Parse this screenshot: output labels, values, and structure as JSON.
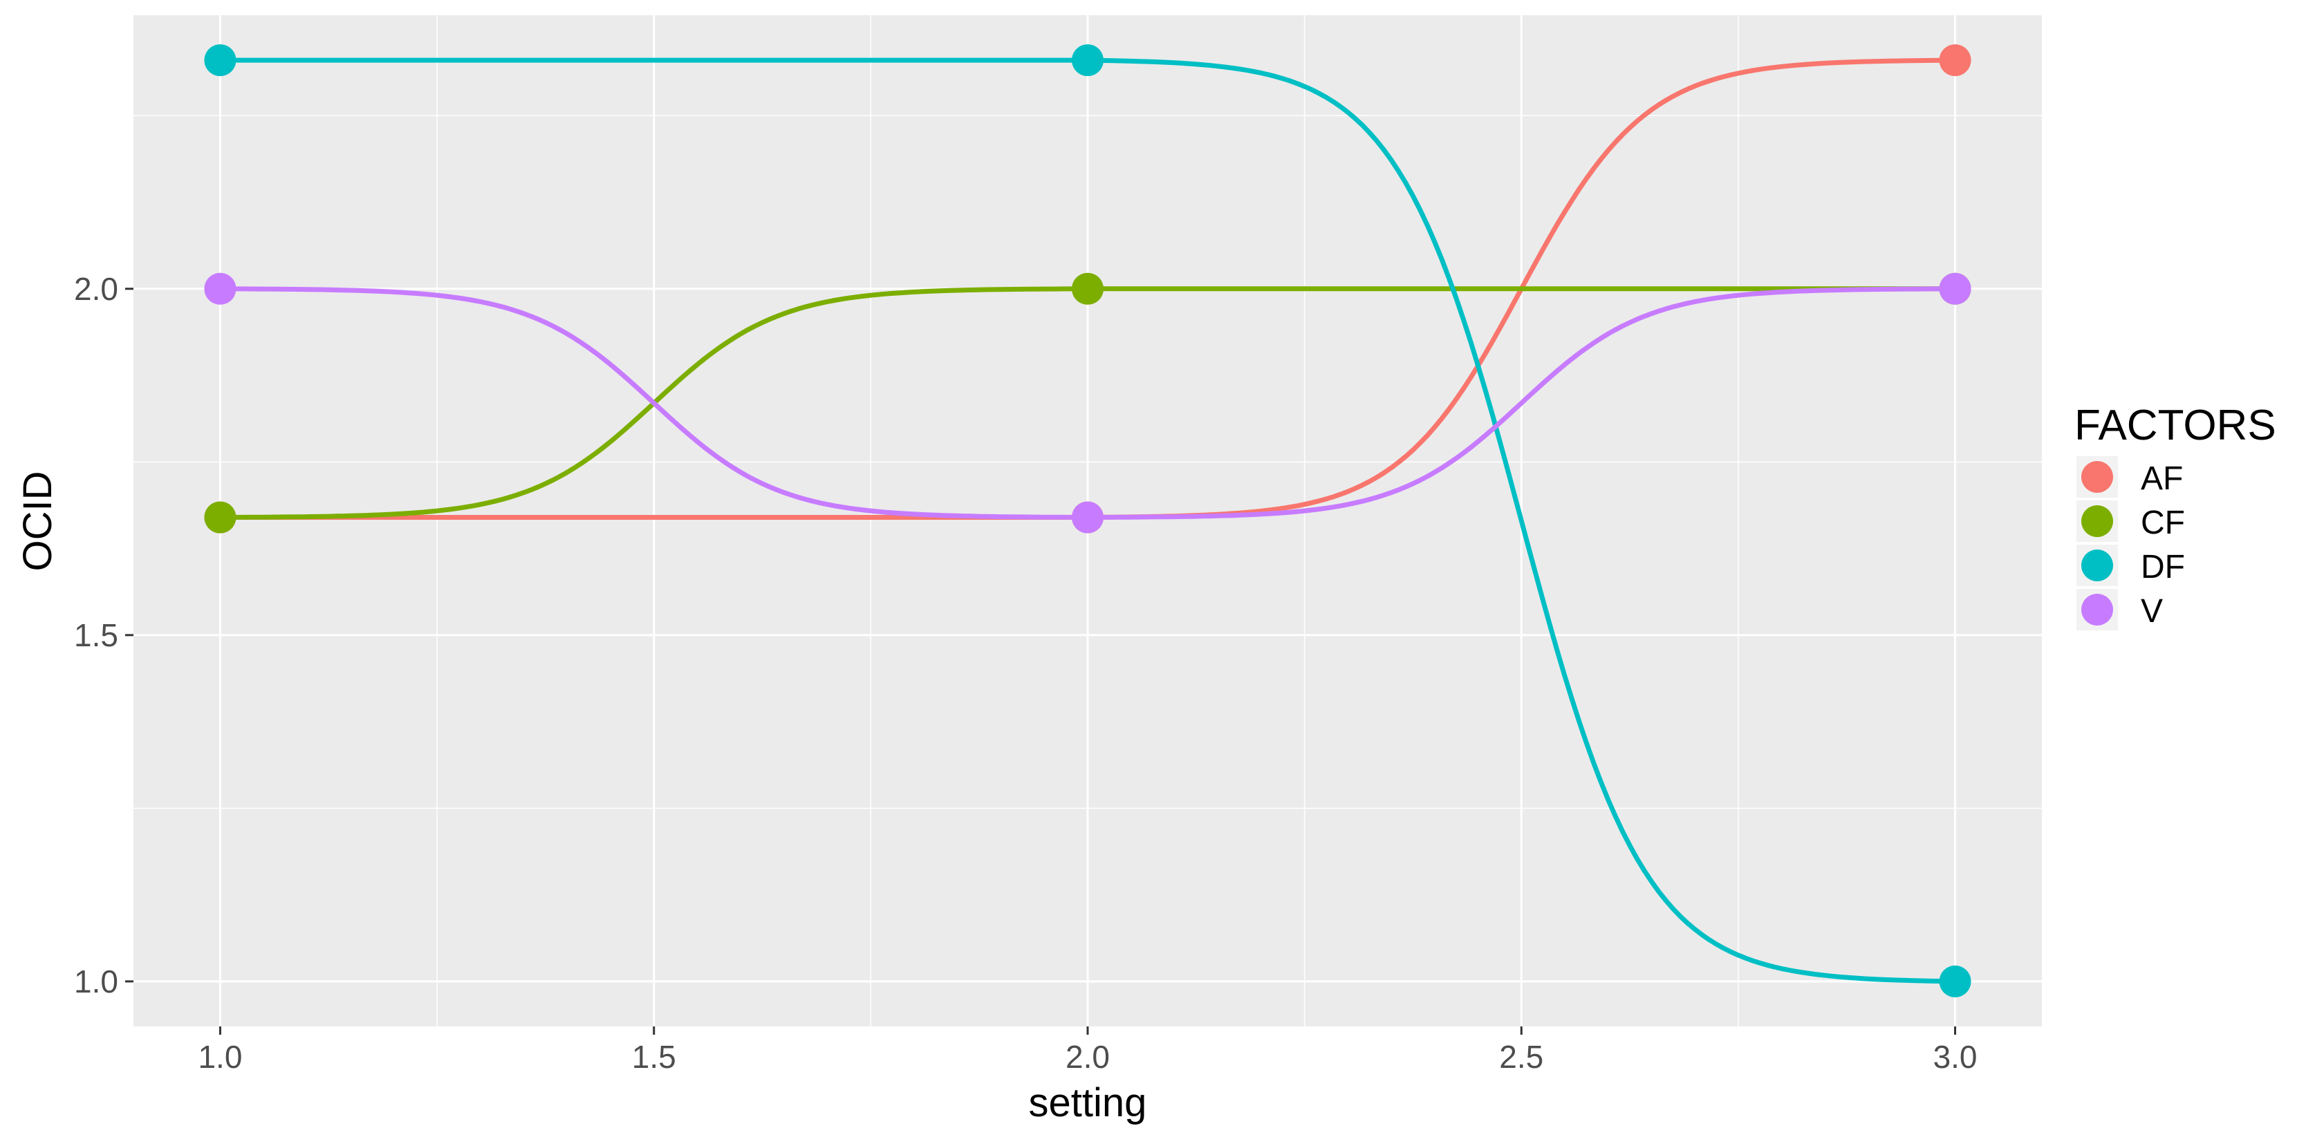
{
  "chart_data": {
    "type": "line",
    "xlabel": "setting",
    "ylabel": "OCID",
    "xlim": [
      0.9,
      3.1
    ],
    "ylim": [
      0.935,
      2.395
    ],
    "x_ticks": [
      "1.0",
      "1.5",
      "2.0",
      "2.5",
      "3.0"
    ],
    "x_tick_values": [
      1.0,
      1.5,
      2.0,
      2.5,
      3.0
    ],
    "y_ticks": [
      "1.0",
      "1.5",
      "2.0"
    ],
    "y_tick_values": [
      1.0,
      1.5,
      2.0
    ],
    "grid": true,
    "legend": {
      "title": "FACTORS",
      "position": "right"
    },
    "smooth": true,
    "x": [
      1,
      2,
      3
    ],
    "series": [
      {
        "name": "AF",
        "color": "#F8766D",
        "values": [
          1.67,
          1.67,
          2.33
        ]
      },
      {
        "name": "CF",
        "color": "#7CAE00",
        "values": [
          1.67,
          2.0,
          2.0
        ]
      },
      {
        "name": "DF",
        "color": "#00BFC4",
        "values": [
          2.33,
          2.33,
          1.0
        ]
      },
      {
        "name": "V",
        "color": "#C77CFF",
        "values": [
          2.0,
          1.67,
          2.0
        ]
      }
    ]
  }
}
